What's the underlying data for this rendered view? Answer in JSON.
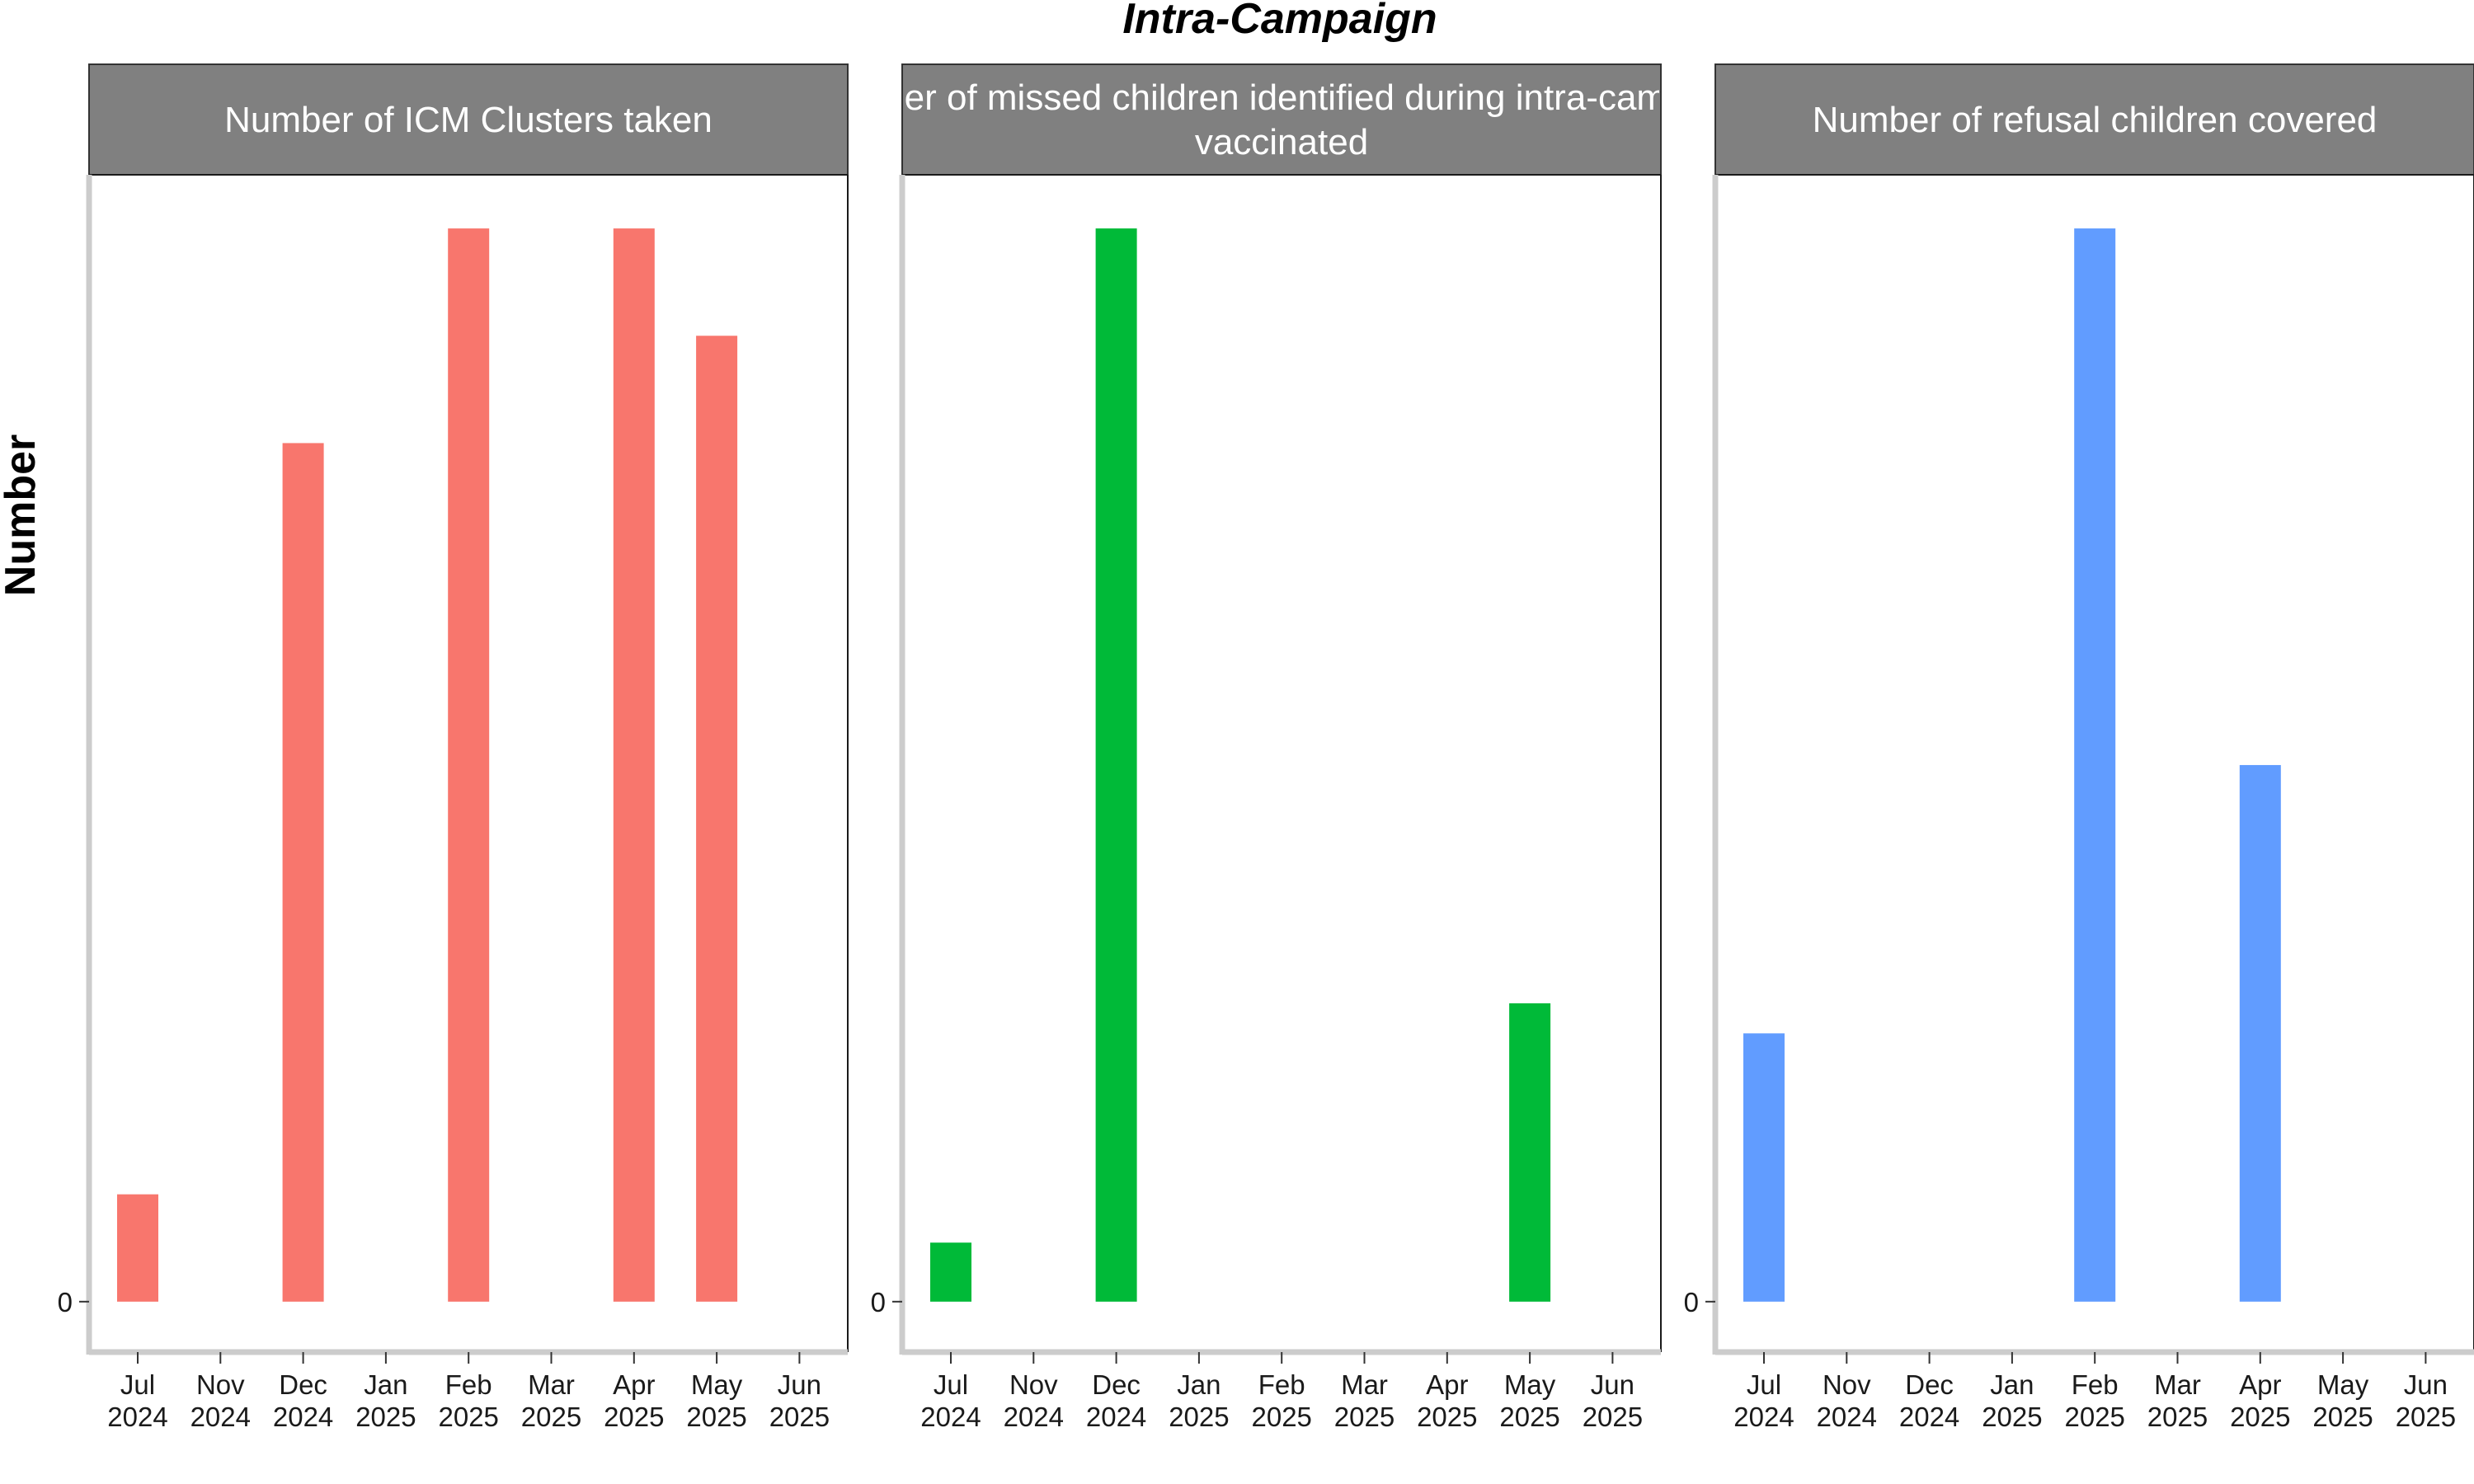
{
  "chart_data": {
    "type": "bar",
    "title": "Intra-Campaign",
    "ylabel": "Number",
    "x_ticks": [
      [
        "Jul",
        "2024"
      ],
      [
        "Nov",
        "2024"
      ],
      [
        "Dec",
        "2024"
      ],
      [
        "Jan",
        "2025"
      ],
      [
        "Feb",
        "2025"
      ],
      [
        "Mar",
        "2025"
      ],
      [
        "Apr",
        "2025"
      ],
      [
        "May",
        "2025"
      ],
      [
        "Jun",
        "2025"
      ]
    ],
    "y_tick_label": "0",
    "grid": false,
    "legend": "none",
    "panels": [
      {
        "strip_lines": [
          "Number of ICM Clusters taken"
        ],
        "color": "#F8766D",
        "categories": [
          "Jul 2024",
          "Dec 2024",
          "Feb 2025",
          "Apr 2025",
          "May 2025"
        ],
        "values": [
          0.1,
          0.8,
          1.0,
          1.0,
          0.9
        ],
        "ylim": [
          -0.047,
          1.05
        ]
      },
      {
        "strip_lines": [
          "Number of missed children identified during intra-campaign",
          "vaccinated"
        ],
        "color": "#00BA38",
        "categories": [
          "Jul 2024",
          "Dec 2024",
          "May 2025"
        ],
        "values": [
          0.055,
          1.0,
          0.278
        ],
        "ylim": [
          -0.047,
          1.05
        ]
      },
      {
        "strip_lines": [
          "Number of refusal children covered"
        ],
        "color": "#619CFF",
        "categories": [
          "Jul 2024",
          "Feb 2025",
          "Apr 2025"
        ],
        "values": [
          0.25,
          1.0,
          0.5
        ],
        "ylim": [
          -0.047,
          1.05
        ]
      }
    ]
  }
}
